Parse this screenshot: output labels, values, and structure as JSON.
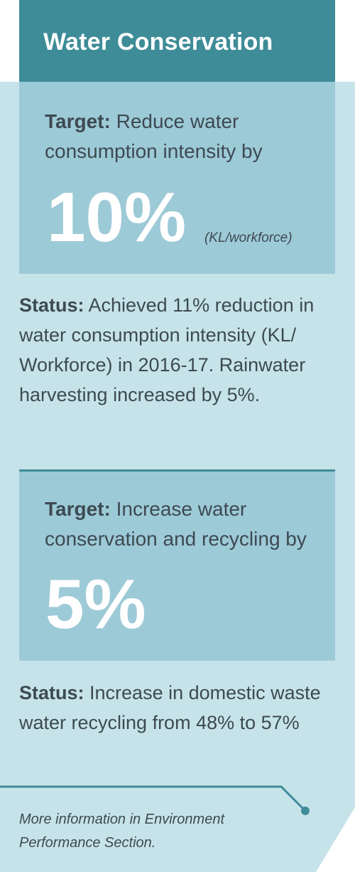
{
  "header": {
    "title": "Water Conservation"
  },
  "targets": [
    {
      "label": "Target:",
      "text": "Reduce water consumption intensity by",
      "value": "10%",
      "unit": "(KL/workforce)",
      "status_label": "Status:",
      "status_text": "Achieved 11% reduction in water consumption intensity (KL/ Workforce) in 2016-17. Rainwater harvesting increased by 5%."
    },
    {
      "label": "Target:",
      "text": "Increase water conservation and recycling by",
      "value": "5%",
      "unit": "",
      "status_label": "Status:",
      "status_text": "Increase in domestic waste water recycling from 48% to 57%"
    }
  ],
  "footer": {
    "note": "More information in Environment Performance Section."
  },
  "colors": {
    "header": "#3e8c98",
    "panel": "#c7e3ea",
    "target_box": "#9dcad7",
    "text": "#3d4a52"
  }
}
